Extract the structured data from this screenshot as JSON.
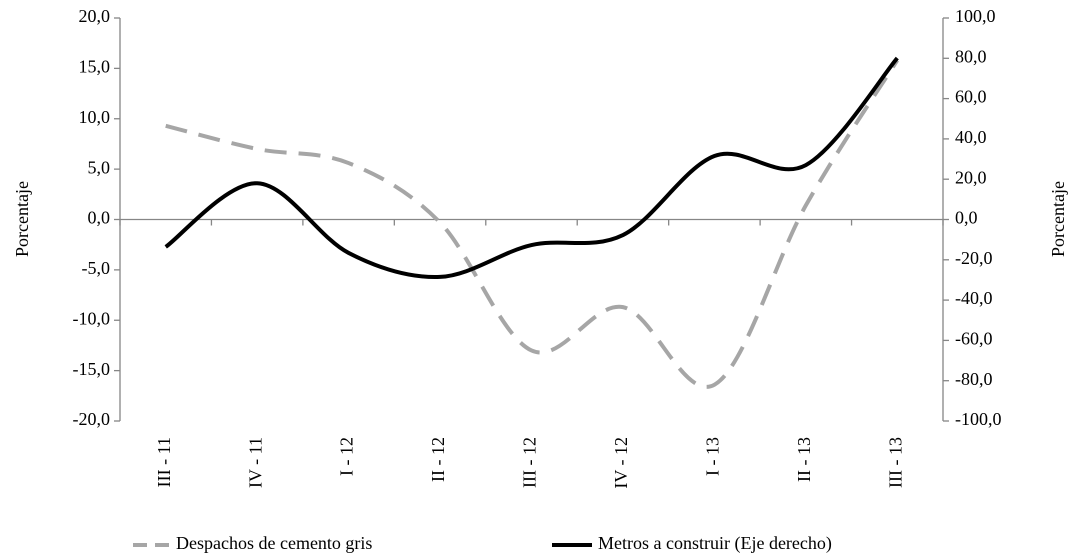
{
  "chart_data": {
    "type": "line",
    "categories": [
      "III - 11",
      "IV - 11",
      "I - 12",
      "II - 12",
      "III - 12",
      "IV - 12",
      "I - 13",
      "II - 13",
      "III - 13"
    ],
    "series": [
      {
        "name": "Despachos de cemento gris",
        "color": "#a6a6a6",
        "line_style": "dashed",
        "values": [
          9.3,
          7.0,
          5.6,
          -0.3,
          -13.0,
          -8.7,
          -16.4,
          1.4,
          15.8
        ]
      },
      {
        "name": "Metros a construir (Eje derecho)",
        "color": "#000000",
        "line_style": "solid",
        "axis": "y2",
        "values": [
          -13.6,
          18.0,
          -16.6,
          -28.5,
          -12.7,
          -7.7,
          31.5,
          27.0,
          80.1
        ]
      }
    ],
    "ylabel": "Porcentaje",
    "y2label": "Porcentaje",
    "ylim": [
      -20,
      20
    ],
    "yticks": [
      {
        "value": -20,
        "label": "-20,0"
      },
      {
        "value": -15,
        "label": "-15,0"
      },
      {
        "value": -10,
        "label": "-10,0"
      },
      {
        "value": -5,
        "label": "-5,0"
      },
      {
        "value": 0,
        "label": "0,0"
      },
      {
        "value": 5,
        "label": "5,0"
      },
      {
        "value": 10,
        "label": "10,0"
      },
      {
        "value": 15,
        "label": "15,0"
      },
      {
        "value": 20,
        "label": "20,0"
      }
    ],
    "y2lim": [
      -100,
      100
    ],
    "y2ticks": [
      {
        "value": -100,
        "label": "-100,0"
      },
      {
        "value": -80,
        "label": "-80,0"
      },
      {
        "value": -60,
        "label": "-60,0"
      },
      {
        "value": -40,
        "label": "-40,0"
      },
      {
        "value": -20,
        "label": "-20,0"
      },
      {
        "value": 0,
        "label": "0,0"
      },
      {
        "value": 20,
        "label": "20,0"
      },
      {
        "value": 40,
        "label": "40,0"
      },
      {
        "value": 60,
        "label": "60,0"
      },
      {
        "value": 80,
        "label": "80,0"
      },
      {
        "value": 100,
        "label": "100,0"
      }
    ],
    "legend": "bottom",
    "smooth": true
  }
}
